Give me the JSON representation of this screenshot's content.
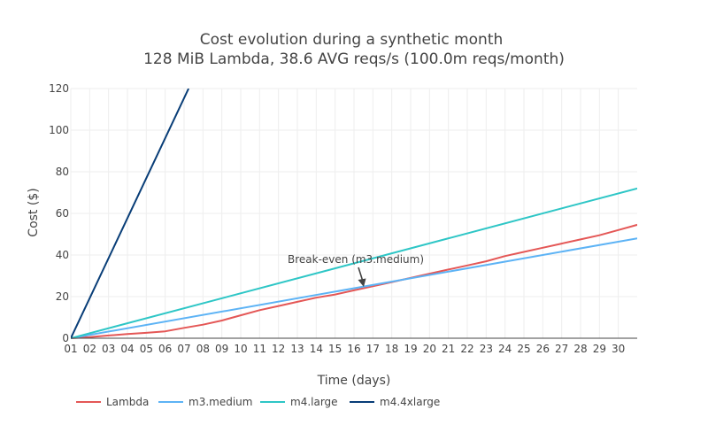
{
  "chart_data": {
    "type": "line",
    "title": "Cost evolution during a synthetic month",
    "subtitle": "128 MiB Lambda, 38.6 AVG reqs/s (100.0m reqs/month)",
    "xlabel": "Time (days)",
    "ylabel": "Cost ($)",
    "xlim": [
      1,
      31
    ],
    "ylim": [
      0,
      120
    ],
    "x_tick_labels": [
      "01",
      "02",
      "03",
      "04",
      "05",
      "06",
      "07",
      "08",
      "09",
      "10",
      "11",
      "12",
      "13",
      "14",
      "15",
      "16",
      "17",
      "18",
      "19",
      "20",
      "21",
      "22",
      "23",
      "24",
      "25",
      "26",
      "27",
      "28",
      "29",
      "30"
    ],
    "y_tick_labels": [
      "0",
      "20",
      "40",
      "60",
      "80",
      "100",
      "120"
    ],
    "y_ticks": [
      0,
      20,
      40,
      60,
      80,
      100,
      120
    ],
    "grid": true,
    "legend_position": "bottom",
    "series": [
      {
        "name": "Lambda",
        "color": "#e45756",
        "x": [
          1,
          2,
          3,
          4,
          5,
          6,
          7,
          8,
          9,
          10,
          11,
          12,
          13,
          14,
          15,
          16,
          17,
          18,
          19,
          20,
          21,
          22,
          23,
          24,
          25,
          26,
          27,
          28,
          29,
          30,
          31
        ],
        "y": [
          0,
          0.5,
          1.3,
          2.0,
          2.6,
          3.3,
          5.0,
          6.5,
          8.5,
          11.0,
          13.5,
          15.5,
          17.5,
          19.5,
          21.0,
          23.0,
          25.0,
          27.0,
          29.0,
          31.0,
          33.0,
          35.0,
          37.0,
          39.5,
          41.5,
          43.5,
          45.5,
          47.5,
          49.5,
          52.0,
          54.5
        ]
      },
      {
        "name": "m3.medium",
        "color": "#5db3f5",
        "x": [
          1,
          31
        ],
        "y": [
          0,
          48
        ]
      },
      {
        "name": "m4.large",
        "color": "#2ec6c6",
        "x": [
          1,
          31
        ],
        "y": [
          0,
          72
        ]
      },
      {
        "name": "m4.4xlarge",
        "color": "#083d77",
        "x": [
          1,
          7.24
        ],
        "y": [
          0,
          120
        ]
      }
    ],
    "annotations": [
      {
        "text": "Break-even (m3.medium)",
        "x": 16.5,
        "y": 25
      }
    ]
  }
}
